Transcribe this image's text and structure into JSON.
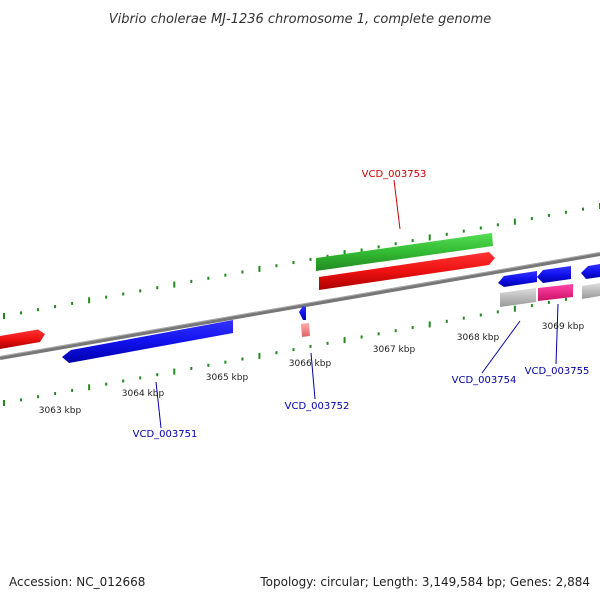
{
  "title": "Vibrio cholerae MJ-1236 chromosome 1, complete genome",
  "footer": {
    "accession": "Accession: NC_012668",
    "summary": "Topology: circular; Length: 3,149,584 bp; Genes: 2,884"
  },
  "colors": {
    "forward_cds": "#ee1111",
    "reverse_cds": "#1111ee",
    "rrna": "#33bb33",
    "pink": "#ee2288",
    "gray": "#bbbbbb",
    "salmon": "#ee8888",
    "backbone": "#777777",
    "tick": "#228822",
    "label_forward": "#cc0000",
    "label_reverse": "#0000aa"
  },
  "scale_labels": [
    "3063 kbp",
    "3064 kbp",
    "3065 kbp",
    "3066 kbp",
    "3067 kbp",
    "3068 kbp",
    "3069 kbp"
  ],
  "gene_labels": [
    {
      "id": "VCD_003751",
      "strand": "reverse"
    },
    {
      "id": "VCD_003752",
      "strand": "reverse"
    },
    {
      "id": "VCD_003753",
      "strand": "forward"
    },
    {
      "id": "VCD_003754",
      "strand": "reverse"
    },
    {
      "id": "VCD_003755",
      "strand": "reverse"
    }
  ]
}
